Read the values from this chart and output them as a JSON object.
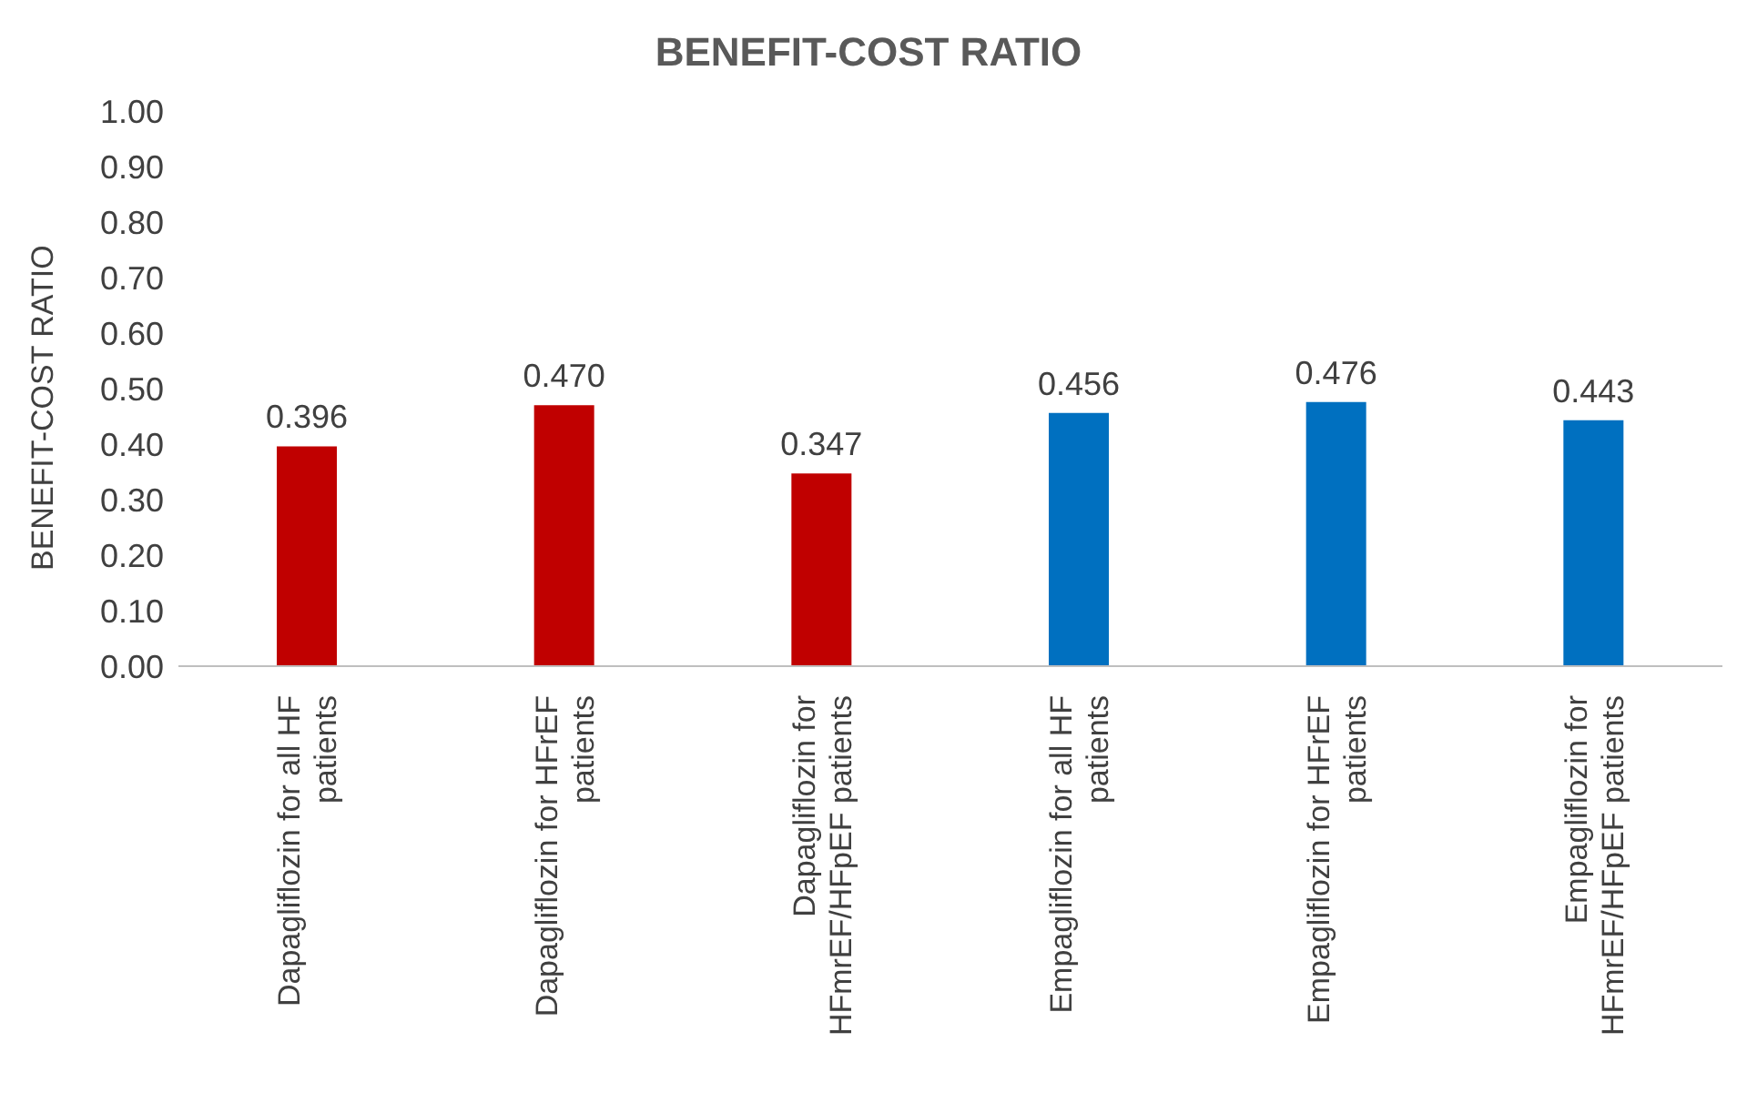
{
  "chart_data": {
    "type": "bar",
    "title": "BENEFIT-COST RATIO",
    "ylabel": "BENEFIT-COST RATIO",
    "categories": [
      "Dapagliflozin for all HF patients",
      "Dapagliflozin for HFrEF patients",
      "Dapagliflozin for HFmrEF/HFpEF patients",
      "Empagliflozin for all HF patients",
      "Empagliflozin for HFrEF patients",
      "Empagliflozin for HFmrEF/HFpEF patients"
    ],
    "values": [
      0.396,
      0.47,
      0.347,
      0.456,
      0.476,
      0.443
    ],
    "value_labels": [
      "0.396",
      "0.470",
      "0.347",
      "0.456",
      "0.476",
      "0.443"
    ],
    "colors": [
      "#c00000",
      "#c00000",
      "#c00000",
      "#0070c0",
      "#0070c0",
      "#0070c0"
    ],
    "ylim": [
      0,
      1
    ],
    "yticks": [
      {
        "value": 0,
        "label": "0.00"
      },
      {
        "value": 0.1,
        "label": "0.10"
      },
      {
        "value": 0.2,
        "label": "0.20"
      },
      {
        "value": 0.3,
        "label": "0.30"
      },
      {
        "value": 0.4,
        "label": "0.40"
      },
      {
        "value": 0.5,
        "label": "0.50"
      },
      {
        "value": 0.6,
        "label": "0.60"
      },
      {
        "value": 0.7,
        "label": "0.70"
      },
      {
        "value": 0.8,
        "label": "0.80"
      },
      {
        "value": 0.9,
        "label": "0.90"
      },
      {
        "value": 1,
        "label": "1.00"
      }
    ],
    "grid": false
  }
}
